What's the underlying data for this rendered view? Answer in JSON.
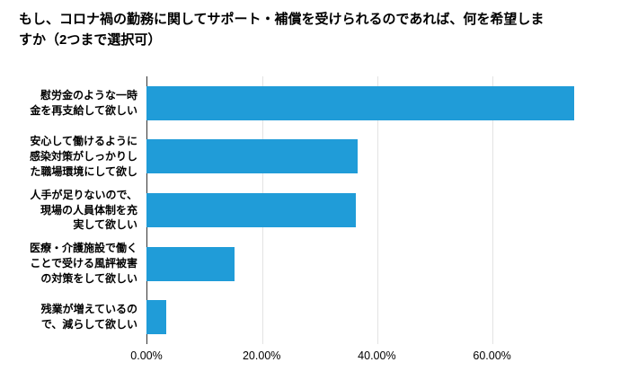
{
  "title": "もし、コロナ禍の勤務に関してサポート・補償を受けられるのであれば、何を希望しま\nすか（2つまで選択可）",
  "chart_data": {
    "type": "bar",
    "orientation": "horizontal",
    "title": "もし、コロナ禍の勤務に関してサポート・補償を受けられるのであれば、何を希望しますか（2つまで選択可）",
    "categories": [
      "慰労金のような一時\n金を再支給して欲しい",
      "安心して働けるように\n感染対策がしっかりし\nた職場環境にして欲し",
      "人手が足りないので、\n現場の人員体制を充\n実して欲しい",
      "医療・介護施設で働く\nことで受ける風評被害\nの対策をして欲しい",
      "残業が増えているの\nで、減らして欲しい"
    ],
    "values": [
      74.2,
      36.6,
      36.3,
      15.3,
      3.4
    ],
    "unit": "%",
    "xlabel": "",
    "ylabel": "",
    "xlim": [
      0,
      83
    ],
    "x_ticks": [
      {
        "value": 0,
        "label": "0.00%"
      },
      {
        "value": 20,
        "label": "20.00%"
      },
      {
        "value": 40,
        "label": "40.00%"
      },
      {
        "value": 60,
        "label": "60.00%"
      }
    ],
    "grid": true,
    "legend": "none",
    "bar_color": "#209cd8",
    "gridline_color": "#e3e3e3",
    "axis_line_color": "#333333"
  }
}
